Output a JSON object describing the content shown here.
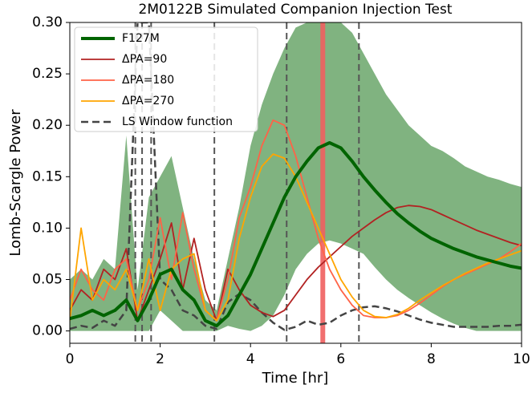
{
  "chart_data": {
    "type": "line",
    "title": "2M0122B Simulated Companion Injection Test",
    "xlabel": "Time [hr]",
    "ylabel": "Lomb-Scargle Power",
    "xlim": [
      0,
      10
    ],
    "ylim": [
      -0.012,
      0.3
    ],
    "xticks": [
      0,
      2,
      4,
      6,
      8,
      10
    ],
    "yticks": [
      {
        "value": 0,
        "label": "0.00"
      },
      0.05,
      {
        "value": 0.1,
        "label": "0.10"
      },
      0.15,
      {
        "value": 0.2,
        "label": "0.20"
      },
      0.25,
      {
        "value": 0.3,
        "label": "0.30"
      }
    ],
    "legend": "upper left",
    "x": [
      0,
      0.25,
      0.5,
      0.75,
      1,
      1.25,
      1.5,
      1.75,
      2,
      2.25,
      2.5,
      2.75,
      3,
      3.25,
      3.5,
      3.75,
      4,
      4.25,
      4.5,
      4.75,
      5,
      5.25,
      5.5,
      5.75,
      6,
      6.25,
      6.5,
      6.75,
      7,
      7.25,
      7.5,
      7.75,
      8,
      8.25,
      8.5,
      8.75,
      9,
      9.25,
      9.5,
      9.75,
      10
    ],
    "band": {
      "color": "#80b380",
      "upper": [
        0.05,
        0.06,
        0.05,
        0.07,
        0.06,
        0.19,
        0.04,
        0.13,
        0.15,
        0.17,
        0.12,
        0.07,
        0.03,
        0.02,
        0.07,
        0.12,
        0.18,
        0.22,
        0.25,
        0.275,
        0.295,
        0.3,
        0.3,
        0.3,
        0.3,
        0.29,
        0.27,
        0.25,
        0.23,
        0.215,
        0.2,
        0.19,
        0.18,
        0.175,
        0.168,
        0.16,
        0.155,
        0.15,
        0.147,
        0.143,
        0.14
      ],
      "lower": [
        0,
        0,
        0,
        0,
        0,
        0,
        0,
        0,
        0.02,
        0.01,
        0,
        0,
        0,
        0,
        0.005,
        0.002,
        0,
        0.005,
        0.015,
        0.035,
        0.06,
        0.075,
        0.085,
        0.088,
        0.085,
        0.08,
        0.075,
        0.062,
        0.05,
        0.04,
        0.032,
        0.025,
        0.018,
        0.012,
        0.007,
        0.003,
        0,
        0,
        0,
        0,
        0
      ]
    },
    "window_lines": {
      "color": "#555555",
      "x": [
        1.45,
        1.6,
        1.8,
        3.2,
        4.8,
        6.4
      ]
    },
    "period_marker": {
      "color": "#f06060",
      "x": 5.6
    },
    "series": [
      {
        "name": "F127M",
        "color": "#006400",
        "width": 4,
        "dash": false,
        "values": [
          0.012,
          0.015,
          0.02,
          0.015,
          0.02,
          0.03,
          0.01,
          0.03,
          0.055,
          0.06,
          0.04,
          0.03,
          0.01,
          0.005,
          0.015,
          0.035,
          0.055,
          0.08,
          0.105,
          0.13,
          0.15,
          0.165,
          0.178,
          0.183,
          0.178,
          0.165,
          0.15,
          0.137,
          0.125,
          0.114,
          0.105,
          0.097,
          0.09,
          0.085,
          0.08,
          0.076,
          0.072,
          0.069,
          0.066,
          0.063,
          0.061
        ]
      },
      {
        "name": "ΔPA=90",
        "color": "#b22222",
        "width": 1.8,
        "dash": false,
        "values": [
          0.02,
          0.04,
          0.03,
          0.06,
          0.05,
          0.08,
          0.01,
          0.04,
          0.07,
          0.105,
          0.04,
          0.09,
          0.04,
          0.01,
          0.06,
          0.04,
          0.025,
          0.018,
          0.014,
          0.02,
          0.035,
          0.05,
          0.062,
          0.072,
          0.082,
          0.092,
          0.1,
          0.108,
          0.115,
          0.12,
          0.122,
          0.121,
          0.118,
          0.113,
          0.108,
          0.103,
          0.098,
          0.094,
          0.09,
          0.086,
          0.083
        ]
      },
      {
        "name": "ΔPA=180",
        "color": "#ff6347",
        "width": 1.8,
        "dash": false,
        "values": [
          0.03,
          0.06,
          0.04,
          0.03,
          0.06,
          0.07,
          0.02,
          0.05,
          0.11,
          0.05,
          0.115,
          0.06,
          0.02,
          0.01,
          0.05,
          0.11,
          0.14,
          0.18,
          0.205,
          0.2,
          0.17,
          0.13,
          0.09,
          0.06,
          0.04,
          0.025,
          0.015,
          0.013,
          0.013,
          0.015,
          0.02,
          0.027,
          0.035,
          0.043,
          0.05,
          0.055,
          0.06,
          0.065,
          0.07,
          0.077,
          0.085
        ]
      },
      {
        "name": "ΔPA=270",
        "color": "#ffa500",
        "width": 1.8,
        "dash": false,
        "values": [
          0.01,
          0.1,
          0.03,
          0.05,
          0.04,
          0.06,
          0.02,
          0.07,
          0.02,
          0.06,
          0.07,
          0.075,
          0.02,
          0.01,
          0.03,
          0.09,
          0.13,
          0.16,
          0.172,
          0.168,
          0.15,
          0.125,
          0.1,
          0.075,
          0.05,
          0.033,
          0.02,
          0.014,
          0.013,
          0.016,
          0.022,
          0.03,
          0.037,
          0.044,
          0.05,
          0.056,
          0.061,
          0.066,
          0.07,
          0.074,
          0.078
        ]
      },
      {
        "name": "LS Window function",
        "color": "#444444",
        "width": 2.5,
        "dash": true,
        "values": [
          0.002,
          0.005,
          0.003,
          0.01,
          0.005,
          0.02,
          0.3,
          0.3,
          0.05,
          0.04,
          0.02,
          0.015,
          0.005,
          0.002,
          0.028,
          0.036,
          0.03,
          0.018,
          0.008,
          0.001,
          0.004,
          0.01,
          0.006,
          0.008,
          0.015,
          0.02,
          0.023,
          0.024,
          0.022,
          0.019,
          0.015,
          0.011,
          0.008,
          0.006,
          0.004,
          0.004,
          0.004,
          0.004,
          0.005,
          0.005,
          0.006
        ]
      }
    ]
  }
}
